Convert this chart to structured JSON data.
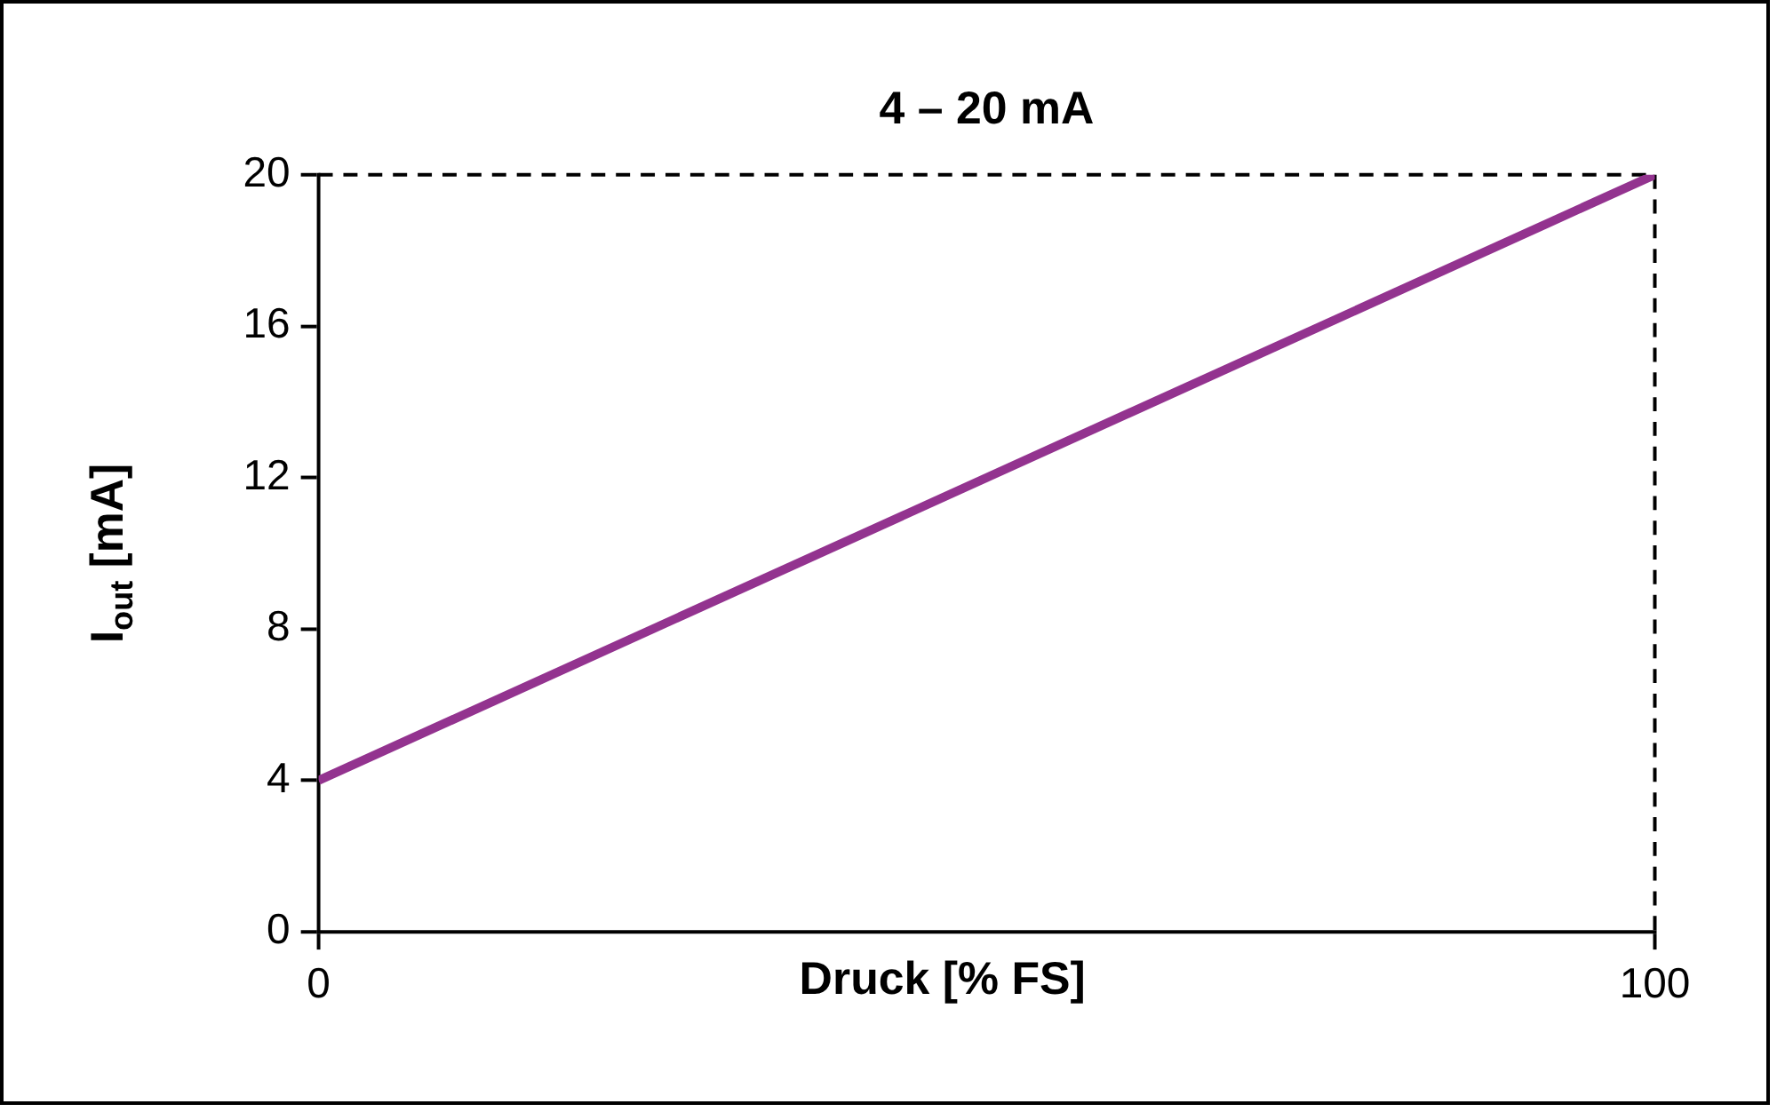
{
  "chart_data": {
    "type": "line",
    "title": "4 – 20 mA",
    "xlabel": "Druck [% FS]",
    "ylabel": "I$_{out}$ [mA]",
    "x": [
      0,
      100
    ],
    "series": [
      {
        "color": "#93338f",
        "values": [
          4,
          20
        ]
      }
    ],
    "xlim": [
      0,
      100
    ],
    "xticks": [
      0,
      100
    ],
    "ylim": [
      0,
      20
    ],
    "yticks": [
      0,
      4,
      8,
      12,
      16,
      20
    ],
    "ref_lines": [
      {
        "axis": "y",
        "value": 20,
        "line_style": "dashed",
        "color": "#000000"
      },
      {
        "axis": "x",
        "value": 100,
        "line_style": "dashed",
        "color": "#000000"
      }
    ],
    "grid": false,
    "legend": false,
    "marker": "none",
    "line_style": "solid"
  }
}
